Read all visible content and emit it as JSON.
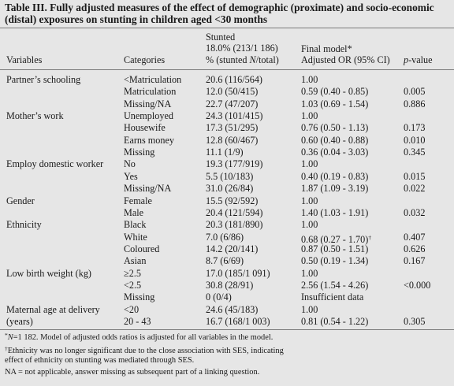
{
  "title": {
    "line1": "Table III. Fully adjusted measures of the effect of demographic (proximate) and socio-economic",
    "line2": "(distal) exposures on stunting  in children aged <30 months"
  },
  "headers": {
    "variables": "Variables",
    "categories": "Categories",
    "stunted_line1": "Stunted",
    "stunted_line2": "18.0% (213/1 186)",
    "stunted_line3_pre": "% (stunted ",
    "stunted_line3_italic": "N",
    "stunted_line3_post": "/total)",
    "model_line1": "Final model",
    "model_mark": "*",
    "model_line2": "Adjusted OR (95% CI)",
    "pvalue_italic": "p",
    "pvalue_post": "-value"
  },
  "rows": [
    {
      "variable": "Partner’s schooling",
      "category": "<Matriculation",
      "stunted": "20.6 (116/564)",
      "or": "1.00",
      "p": ""
    },
    {
      "variable": "",
      "category": "Matriculation",
      "stunted": "12.0 (50/415)",
      "or": "0.59 (0.40 - 0.85)",
      "p": "0.005"
    },
    {
      "variable": "",
      "category": "Missing/NA",
      "stunted": "22.7 (47/207)",
      "or": "1.03 (0.69 - 1.54)",
      "p": "0.886"
    },
    {
      "variable": "Mother’s work",
      "category": "Unemployed",
      "stunted": "24.3 (101/415)",
      "or": "1.00",
      "p": ""
    },
    {
      "variable": "",
      "category": "Housewife",
      "stunted": "17.3 (51/295)",
      "or": "0.76 (0.50 - 1.13)",
      "p": "0.173"
    },
    {
      "variable": "",
      "category": "Earns money",
      "stunted": "12.8 (60/467)",
      "or": "0.60 (0.40 - 0.88)",
      "p": "0.010"
    },
    {
      "variable": "",
      "category": "Missing",
      "stunted": "11.1 (1/9)",
      "or": "0.36 (0.04 - 3.03)",
      "p": "0.345"
    },
    {
      "variable": "Employ domestic worker",
      "category": "No",
      "stunted": "19.3 (177/919)",
      "or": "1.00",
      "p": ""
    },
    {
      "variable": "",
      "category": "Yes",
      "stunted": "5.5 (10/183)",
      "or": "0.40 (0.19 - 0.83)",
      "p": "0.015"
    },
    {
      "variable": "",
      "category": "Missing/NA",
      "stunted": "31.0 (26/84)",
      "or": "1.87 (1.09 - 3.19)",
      "p": "0.022"
    },
    {
      "variable": "Gender",
      "category": "Female",
      "stunted": "15.5 (92/592)",
      "or": "1.00",
      "p": ""
    },
    {
      "variable": "",
      "category": "Male",
      "stunted": "20.4 (121/594)",
      "or": "1.40 (1.03 - 1.91)",
      "p": "0.032"
    },
    {
      "variable": "Ethnicity",
      "category": "Black",
      "stunted": "20.3 (181/890)",
      "or": "1.00",
      "p": ""
    },
    {
      "variable": "",
      "category": "White",
      "stunted": "7.0 (6/86)",
      "or": "0.68 (0.27 - 1.70)",
      "or_mark": "†",
      "p": "0.407"
    },
    {
      "variable": "",
      "category": "Coloured",
      "stunted": "14.2 (20/141)",
      "or": "0.87 (0.50 - 1.51)",
      "p": "0.626"
    },
    {
      "variable": "",
      "category": "Asian",
      "stunted": "8.7 (6/69)",
      "or": "0.50 (0.19 - 1.34)",
      "p": "0.167"
    },
    {
      "variable": "Low birth weight (kg)",
      "category": "≥2.5",
      "stunted": "17.0 (185/1 091)",
      "or": "1.00",
      "p": ""
    },
    {
      "variable": "",
      "category": "<2.5",
      "stunted": "30.8 (28/91)",
      "or": "2.56 (1.54 - 4.26)",
      "p": "<0.000"
    },
    {
      "variable": "",
      "category": "Missing",
      "stunted": "0 (0/4)",
      "or": "Insufficient data",
      "p": ""
    },
    {
      "variable": "Maternal age at delivery",
      "category": "<20",
      "stunted": "24.6 (45/183)",
      "or": "1.00",
      "p": ""
    },
    {
      "variable": "(years)",
      "category": "20 - 43",
      "stunted": "16.7 (168/1 003)",
      "or": "0.81 (0.54 - 1.22)",
      "p": "0.305"
    }
  ],
  "footnotes": {
    "f1_mark": "*",
    "f1_italic": "N",
    "f1_text": "=1 182. Model of adjusted odds ratios is adjusted for all variables in the model.",
    "f2_mark": "†",
    "f2_line1": "Ethnicity was no longer significant due to the close association with SES, indicating",
    "f2_line2": "effect of ethnicity on stunting was mediated through SES.",
    "f3": "NA = not applicable, answer missing as subsequent part of a linking question."
  }
}
